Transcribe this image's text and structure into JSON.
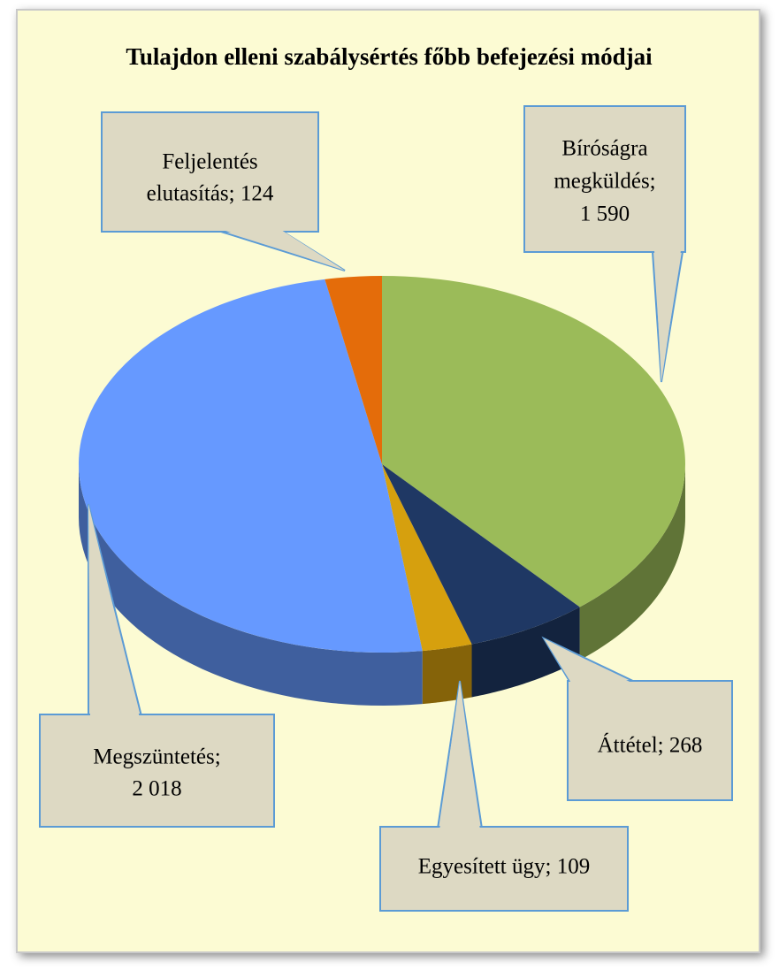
{
  "chart_data": {
    "type": "pie3d",
    "title": "Tulajdon elleni szabálysértés főbb befejezési módjai",
    "labels": [
      [
        "Bíróságra",
        "megküldés;",
        "1 590"
      ],
      [
        "Áttétel; 268"
      ],
      [
        "Egyesített ügy; 109"
      ],
      [
        "Megszüntetés;",
        "2 018"
      ],
      [
        "Feljelentés",
        "elutasítás; 124"
      ]
    ],
    "values": [
      1590,
      268,
      109,
      2018,
      124
    ],
    "colors": [
      "#9bbb59",
      "#1f3864",
      "#d6a00e",
      "#6699ff",
      "#e46c0a"
    ]
  }
}
